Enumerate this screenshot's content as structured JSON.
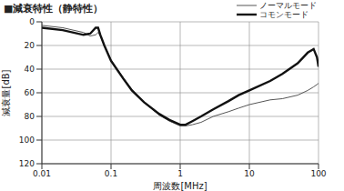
{
  "chart_data": {
    "type": "line",
    "title": "■減衰特性（静特性）",
    "x_label": "周波数[MHz]",
    "y_label": "減衰量[dB]",
    "x": [
      0.01,
      0.02,
      0.04,
      0.05,
      0.06,
      0.065,
      0.07,
      0.08,
      0.1,
      0.15,
      0.2,
      0.3,
      0.5,
      0.7,
      1,
      1.2,
      1.5,
      2,
      3,
      5,
      7,
      10,
      20,
      30,
      50,
      70,
      85,
      95,
      100
    ],
    "series": [
      {
        "name": "ノーマルモード",
        "color": "#555555",
        "line_style": "thin",
        "values": [
          3,
          5,
          9,
          12,
          11,
          9,
          12,
          20,
          32,
          47,
          57,
          68,
          79,
          84,
          88,
          88,
          87,
          85,
          80,
          76,
          73,
          70,
          66,
          65,
          62,
          58,
          55,
          53,
          52
        ]
      },
      {
        "name": "コモンモード",
        "color": "#111111",
        "line_style": "bold",
        "values": [
          5,
          7,
          11,
          10,
          5,
          5,
          11,
          20,
          33,
          48,
          58,
          68,
          78,
          83,
          87,
          87,
          84,
          80,
          74,
          67,
          62,
          58,
          50,
          44,
          35,
          26,
          23,
          30,
          38
        ]
      }
    ],
    "xlim": [
      0.01,
      100
    ],
    "xticks": [
      0.01,
      0.1,
      1,
      10,
      100
    ],
    "ylim": [
      0,
      120
    ],
    "yticks": [
      0,
      20,
      40,
      60,
      80,
      100,
      120
    ],
    "log": "x",
    "grid": true,
    "legend": "upper right"
  }
}
